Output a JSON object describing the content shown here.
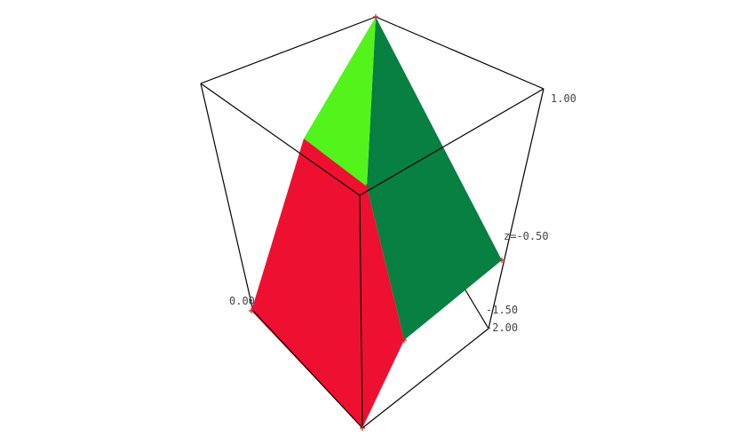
{
  "axis_labels": {
    "z_top": "1.00",
    "z_mid": "z=-0.50",
    "y_a": "-1.50",
    "y_b": "-2.00",
    "x_left": "0.00"
  },
  "colors": {
    "background": "#ffffff",
    "box": "#000000",
    "face_red": "#ee1030",
    "face_dark_green": "#078042",
    "face_light_green": "#52f41c"
  }
}
